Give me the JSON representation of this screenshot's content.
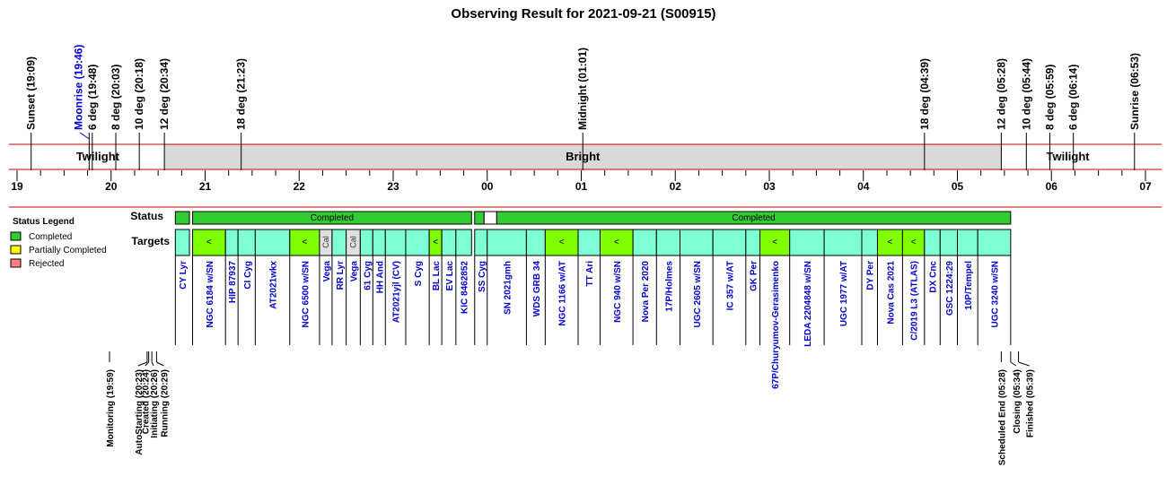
{
  "chart_data": {
    "type": "timeline",
    "title": "Observing Result for 2021-09-21 (S00915)",
    "axis": {
      "start": "19:00",
      "end": "07:00",
      "hour_labels": [
        "19",
        "20",
        "21",
        "22",
        "23",
        "00",
        "01",
        "02",
        "03",
        "04",
        "05",
        "06",
        "07"
      ]
    },
    "events_top": [
      {
        "label": "Sunset (19:09)",
        "time": "19:09"
      },
      {
        "label": "Moonrise (19:46)",
        "time": "19:46",
        "color": "#0000cc"
      },
      {
        "label": "6 deg (19:48)",
        "time": "19:48"
      },
      {
        "label": "8 deg (20:03)",
        "time": "20:03"
      },
      {
        "label": "10 deg (20:18)",
        "time": "20:18"
      },
      {
        "label": "12 deg (20:34)",
        "time": "20:34"
      },
      {
        "label": "18 deg (21:23)",
        "time": "21:23"
      },
      {
        "label": "Midnight (01:01)",
        "time": "01:01"
      },
      {
        "label": "18 deg (04:39)",
        "time": "04:39"
      },
      {
        "label": "12 deg (05:28)",
        "time": "05:28"
      },
      {
        "label": "10 deg (05:44)",
        "time": "05:44"
      },
      {
        "label": "8 deg (05:59)",
        "time": "05:59"
      },
      {
        "label": "6 deg (06:14)",
        "time": "06:14"
      },
      {
        "label": "Sunrise (06:53)",
        "time": "06:53"
      }
    ],
    "bands": [
      {
        "label": "Twilight",
        "start": "19:09",
        "end": "20:34",
        "color": "#ffffff"
      },
      {
        "label": "Bright",
        "start": "20:34",
        "end": "05:28",
        "color": "#d9d9d9"
      },
      {
        "label": "Twilight",
        "start": "05:28",
        "end": "06:53",
        "color": "#ffffff"
      }
    ],
    "legend": {
      "title": "Status Legend",
      "items": [
        {
          "label": "Completed",
          "color": "#33cc33"
        },
        {
          "label": "Partially Completed",
          "color": "#ffff00"
        },
        {
          "label": "Rejected",
          "color": "#ff8080"
        }
      ]
    },
    "rows": {
      "status": "Status",
      "targets": "Targets"
    },
    "status_blocks": [
      {
        "start": "20:41",
        "end": "20:50",
        "label": ""
      },
      {
        "start": "20:52",
        "end": "23:50",
        "label": "Completed"
      },
      {
        "start": "23:52",
        "end": "23:58",
        "label": ""
      },
      {
        "start": "00:06",
        "end": "05:34",
        "label": "Completed"
      }
    ],
    "targets": [
      {
        "name": "CY Lyr",
        "start": "20:41",
        "end": "20:50"
      },
      {
        "name": "NGC 6184 w/SN",
        "start": "20:52",
        "end": "21:13",
        "guided": true
      },
      {
        "name": "HIP 87937",
        "start": "21:13",
        "end": "21:21"
      },
      {
        "name": "CI Cyg",
        "start": "21:21",
        "end": "21:32"
      },
      {
        "name": "AT2021wkx",
        "start": "21:32",
        "end": "21:54"
      },
      {
        "name": "NGC 6500 w/SN",
        "start": "21:54",
        "end": "22:13",
        "guided": true
      },
      {
        "name": "Vega",
        "start": "22:13",
        "end": "22:21",
        "cal": true
      },
      {
        "name": "RR Lyr",
        "start": "22:21",
        "end": "22:30"
      },
      {
        "name": "Vega",
        "start": "22:30",
        "end": "22:39",
        "cal": true
      },
      {
        "name": "61 Cyg",
        "start": "22:39",
        "end": "22:47"
      },
      {
        "name": "HH And",
        "start": "22:47",
        "end": "22:55"
      },
      {
        "name": "AT2021yjl (CV)",
        "start": "22:55",
        "end": "23:08"
      },
      {
        "name": "S Cyg",
        "start": "23:08",
        "end": "23:23"
      },
      {
        "name": "BL Lac",
        "start": "23:23",
        "end": "23:31",
        "guided": true
      },
      {
        "name": "EV Lac",
        "start": "23:31",
        "end": "23:40"
      },
      {
        "name": "KIC 8462852",
        "start": "23:40",
        "end": "23:50"
      },
      {
        "name": "SS Cyg",
        "start": "23:52",
        "end": "24:00"
      },
      {
        "name": "SN 2021gmh",
        "start": "24:00",
        "end": "24:25"
      },
      {
        "name": "WDS GRB 34",
        "start": "24:25",
        "end": "24:37"
      },
      {
        "name": "NGC 1166 w/AT",
        "start": "24:37",
        "end": "24:58",
        "guided": true
      },
      {
        "name": "TT Ari",
        "start": "24:58",
        "end": "25:12"
      },
      {
        "name": "NGC 940 w/SN",
        "start": "25:12",
        "end": "25:33",
        "guided": true
      },
      {
        "name": "Nova Per 2020",
        "start": "25:33",
        "end": "25:48"
      },
      {
        "name": "17P/Holmes",
        "start": "25:48",
        "end": "26:03"
      },
      {
        "name": "UGC 2605 w/SN",
        "start": "26:03",
        "end": "26:24"
      },
      {
        "name": "IC 357 w/AT",
        "start": "26:24",
        "end": "26:45"
      },
      {
        "name": "GK Per",
        "start": "26:45",
        "end": "26:54"
      },
      {
        "name": "67P/Churyumov-Gerasimenko",
        "start": "26:54",
        "end": "27:13",
        "guided": true
      },
      {
        "name": "LEDA 2204848 w/SN",
        "start": "27:13",
        "end": "27:35"
      },
      {
        "name": "UGC 1977 w/AT",
        "start": "27:35",
        "end": "27:59"
      },
      {
        "name": "DY Per",
        "start": "27:59",
        "end": "28:09"
      },
      {
        "name": "Nova Cas 2021",
        "start": "28:09",
        "end": "28:25",
        "guided": true
      },
      {
        "name": "C/2019 L3 (ATLAS)",
        "start": "28:25",
        "end": "28:39",
        "guided": true
      },
      {
        "name": "DX Cnc",
        "start": "28:39",
        "end": "28:49"
      },
      {
        "name": "GSC 1224:29",
        "start": "28:49",
        "end": "29:00"
      },
      {
        "name": "10P/Tempel",
        "start": "29:00",
        "end": "29:13"
      },
      {
        "name": "UGC 3240 w/SN",
        "start": "29:13",
        "end": "29:34"
      }
    ],
    "events_bottom": [
      {
        "label": "Monitoring (19:59)",
        "time": "19:59"
      },
      {
        "label": "AutoStarting (20:23)",
        "time": "20:23"
      },
      {
        "label": "Created (20:24)",
        "time": "20:24"
      },
      {
        "label": "Initiating (20:26)",
        "time": "20:26"
      },
      {
        "label": "Running (20:29)",
        "time": "20:29"
      },
      {
        "label": "Scheduled End (05:28)",
        "time": "05:28"
      },
      {
        "label": "Closing (05:34)",
        "time": "05:34"
      },
      {
        "label": "Finished (05:39)",
        "time": "05:39"
      }
    ]
  }
}
